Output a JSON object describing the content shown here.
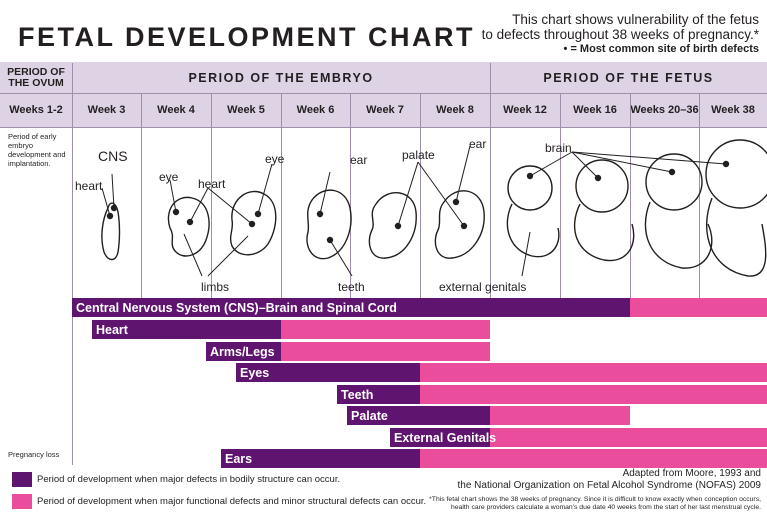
{
  "title": "FETAL DEVELOPMENT CHART",
  "subtitle": {
    "line1": "This chart shows vulnerability of the fetus",
    "line2": "to defects throughout 38 weeks of pregnancy.*",
    "line3": "• = Most common site of birth defects"
  },
  "header": {
    "ovum": "PERIOD OF THE OVUM",
    "embryo": "PERIOD OF THE EMBRYO",
    "fetus": "PERIOD OF THE FETUS"
  },
  "weeks": [
    "Weeks 1-2",
    "Week 3",
    "Week 4",
    "Week 5",
    "Week 6",
    "Week 7",
    "Week 8",
    "Week 12",
    "Week 16",
    "Weeks 20–36",
    "Week 38"
  ],
  "side_notes": {
    "implantation": "Period of early embryo development and implantation.",
    "loss": "Pregnancy loss"
  },
  "organ_labels": {
    "cns": "CNS",
    "heart1": "heart",
    "eye1": "eye",
    "heart2": "heart",
    "eye2": "eye",
    "ear1": "ear",
    "palate": "palate",
    "ear2": "ear",
    "brain": "brain",
    "limbs": "limbs",
    "teeth": "teeth",
    "external_genitals": "external genitals"
  },
  "chart_data": {
    "type": "bar",
    "title": "FETAL DEVELOPMENT CHART",
    "categories": [
      "Central Nervous System (CNS)–Brain and Spinal Cord",
      "Heart",
      "Arms/Legs",
      "Eyes",
      "Teeth",
      "Palate",
      "External Genitals",
      "Ears"
    ],
    "x_axis_weeks": [
      "Weeks 1-2",
      "Week 3",
      "Week 4",
      "Week 5",
      "Week 6",
      "Week 7",
      "Week 8",
      "Week 12",
      "Week 16",
      "Weeks 20–36",
      "Week 38"
    ],
    "series": [
      {
        "name": "Period of development when major defects in bodily structure can occur.",
        "color": "#5f1470",
        "ranges": [
          [
            "Week 3",
            "Weeks 20–36"
          ],
          [
            "Week 3",
            "Week 6"
          ],
          [
            "Week 4",
            "Week 6"
          ],
          [
            "Week 4",
            "Week 8"
          ],
          [
            "Week 6",
            "Week 8"
          ],
          [
            "Week 6",
            "Week 12"
          ],
          [
            "Week 7",
            "Week 12"
          ],
          [
            "Week 4",
            "Week 8"
          ]
        ]
      },
      {
        "name": "Period of development when major functional defects and minor structural defects can occur.",
        "color": "#ea4d9c",
        "ranges": [
          [
            "Weeks 20–36",
            "Week 38"
          ],
          [
            "Week 6",
            "Week 8"
          ],
          [
            "Week 6",
            "Week 8"
          ],
          [
            "Week 8",
            "Week 38"
          ],
          [
            "Week 8",
            "Week 38"
          ],
          [
            "Week 12",
            "Week 16"
          ],
          [
            "Week 12",
            "Week 38"
          ],
          [
            "Week 8",
            "Week 38"
          ]
        ]
      }
    ],
    "legend_placement": "bottom-left"
  },
  "legend": [
    {
      "label": "Period of development when major defects in bodily structure can occur.",
      "color": "#5f1470"
    },
    {
      "label": "Period of development when major functional defects and minor structural defects can occur.",
      "color": "#ea4d9c"
    }
  ],
  "credit": {
    "line1": "Adapted from Moore, 1993 and",
    "line2": "the National Organization on Fetal Alcohol Syndrome (NOFAS) 2009"
  },
  "footnote": "*This fetal chart shows the 38 weeks of pregnancy. Since it is difficult to know exactly when conception occurs, health care providers calculate a woman's due date 40 weeks from the start of her last menstrual cycle."
}
